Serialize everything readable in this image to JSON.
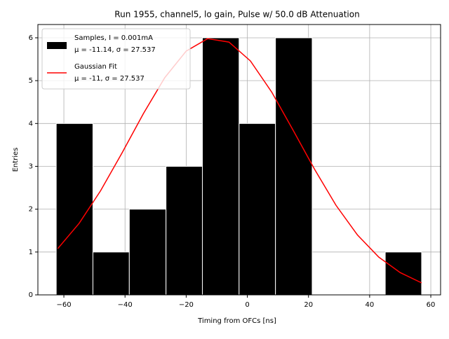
{
  "chart_data": {
    "type": "histogram",
    "title": "Run 1955, channel5, lo gain, Pulse w/ 50.0 dB Attenuation",
    "xlabel": "Timing from OFCs [ns]",
    "ylabel": "Entries",
    "bins": [
      -62.5,
      -50.5,
      -38.6,
      -26.6,
      -14.7,
      -2.7,
      9.2,
      21.2,
      33.1,
      45.1,
      57.0
    ],
    "counts": [
      4,
      1,
      2,
      3,
      6,
      4,
      6,
      0,
      0,
      1
    ],
    "hist_color": "#000000",
    "hist_name": "Samples, I = 0.001mA",
    "hist_stats": "μ = -11.14, σ = 27.537",
    "fit": {
      "name": "Gaussian Fit",
      "stats": "μ = -11, σ = 27.537",
      "color": "#ff0000",
      "x": [
        -62,
        -55,
        -48,
        -41,
        -34,
        -27,
        -20,
        -13,
        -6,
        1,
        8,
        15,
        22,
        29,
        36,
        43,
        50,
        57
      ],
      "values": [
        1.08,
        1.67,
        2.43,
        3.31,
        4.23,
        5.07,
        5.69,
        5.98,
        5.9,
        5.46,
        4.73,
        3.84,
        2.93,
        2.09,
        1.4,
        0.88,
        0.52,
        0.28
      ]
    },
    "xlim": [
      -68.5,
      63.2
    ],
    "ylim": [
      0,
      6.31
    ],
    "xticks": [
      {
        "value": -60,
        "label": "−60"
      },
      {
        "value": -40,
        "label": "−40"
      },
      {
        "value": -20,
        "label": "−20"
      },
      0,
      20,
      40,
      60
    ],
    "yticks": [
      0,
      1,
      2,
      3,
      4,
      5,
      6
    ],
    "grid": true,
    "legend": "upper left"
  }
}
